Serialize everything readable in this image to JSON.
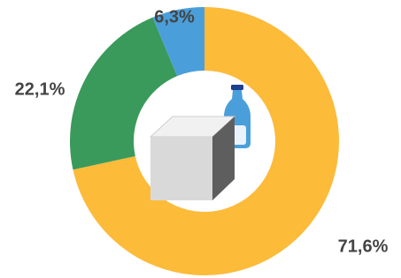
{
  "chart_data": {
    "type": "donut",
    "values": [
      71.6,
      22.1,
      6.3
    ],
    "value_labels": [
      "71,6%",
      "22,1%",
      "6,3%"
    ],
    "colors": [
      "#fdbb3a",
      "#3a9a5b",
      "#4a9fda"
    ]
  }
}
